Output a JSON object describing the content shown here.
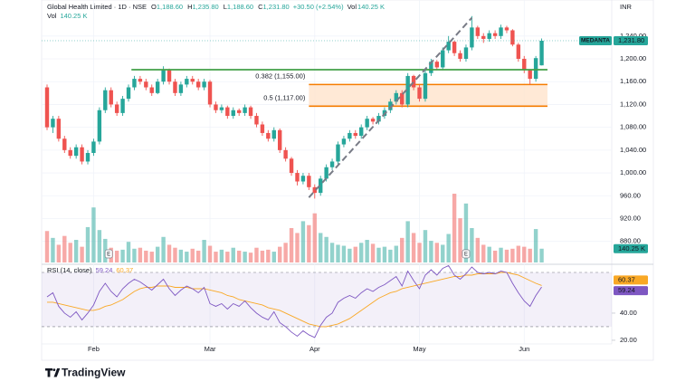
{
  "header": {
    "symbol": "Global Health Limited · 1D · NSE",
    "ohlc": [
      {
        "label": "O",
        "value": "1,188.60"
      },
      {
        "label": "H",
        "value": "1,235.80"
      },
      {
        "label": "L",
        "value": "1,188.60"
      },
      {
        "label": "C",
        "value": "1,231.80"
      }
    ],
    "change": "+30.50 (+2.54%)",
    "volume": {
      "label": "Vol",
      "value": "140.25 K"
    }
  },
  "volume_legend": {
    "label": "Vol",
    "value": "140.25 K"
  },
  "logo": "TradingView",
  "chart_data": [
    {
      "type": "candlestick",
      "currency": "INR",
      "ticker_label": "MEDANTA",
      "last_price_label": "1,231.80",
      "volume_label": "140.25 K",
      "up_color": "#26a69a",
      "down_color": "#ef5350",
      "categories": [
        null,
        null,
        null,
        null,
        null,
        null,
        null,
        null,
        "Feb",
        null,
        null,
        null,
        null,
        null,
        null,
        null,
        null,
        null,
        null,
        null,
        null,
        null,
        null,
        null,
        null,
        null,
        null,
        null,
        "Mar",
        null,
        null,
        null,
        null,
        null,
        null,
        null,
        null,
        null,
        null,
        null,
        null,
        null,
        null,
        null,
        null,
        null,
        "Apr",
        null,
        null,
        null,
        null,
        null,
        null,
        null,
        null,
        null,
        null,
        null,
        null,
        null,
        null,
        null,
        null,
        null,
        "May",
        null,
        null,
        null,
        null,
        null,
        null,
        null,
        null,
        null,
        null,
        null,
        null,
        null,
        null,
        null,
        null,
        null,
        "Jun",
        null,
        null,
        null
      ],
      "open": [
        1150,
        1080,
        1095,
        1060,
        1040,
        1030,
        1045,
        1020,
        1035,
        1055,
        1110,
        1145,
        1120,
        1105,
        1130,
        1150,
        1165,
        1160,
        1150,
        1140,
        1160,
        1180,
        1160,
        1140,
        1155,
        1165,
        1160,
        1150,
        1160,
        1120,
        1110,
        1115,
        1100,
        1110,
        1105,
        1115,
        1100,
        1085,
        1070,
        1060,
        1075,
        1040,
        1025,
        1000,
        985,
        995,
        975,
        965,
        990,
        1010,
        1020,
        1050,
        1060,
        1070,
        1065,
        1080,
        1095,
        1090,
        1100,
        1110,
        1125,
        1140,
        1120,
        1170,
        1150,
        1130,
        1175,
        1195,
        1185,
        1215,
        1230,
        1210,
        1200,
        1220,
        1255,
        1240,
        1235,
        1245,
        1240,
        1255,
        1250,
        1225,
        1200,
        1180,
        1165,
        1188.6
      ],
      "high": [
        1155,
        1100,
        1100,
        1065,
        1045,
        1050,
        1050,
        1040,
        1060,
        1115,
        1150,
        1150,
        1125,
        1135,
        1155,
        1170,
        1170,
        1165,
        1155,
        1165,
        1187,
        1183,
        1165,
        1160,
        1170,
        1170,
        1165,
        1165,
        1163,
        1125,
        1120,
        1118,
        1115,
        1113,
        1120,
        1118,
        1105,
        1090,
        1075,
        1080,
        1078,
        1045,
        1028,
        1005,
        1000,
        1000,
        980,
        995,
        1015,
        1025,
        1055,
        1065,
        1075,
        1075,
        1085,
        1100,
        1098,
        1105,
        1115,
        1130,
        1145,
        1145,
        1175,
        1172,
        1155,
        1180,
        1200,
        1198,
        1220,
        1240,
        1232,
        1215,
        1225,
        1275,
        1258,
        1245,
        1250,
        1250,
        1260,
        1258,
        1252,
        1228,
        1205,
        1182,
        1205,
        1235.8
      ],
      "low": [
        1075,
        1070,
        1055,
        1035,
        1025,
        1025,
        1015,
        1015,
        1030,
        1050,
        1105,
        1115,
        1100,
        1100,
        1125,
        1145,
        1155,
        1145,
        1135,
        1138,
        1155,
        1155,
        1135,
        1135,
        1150,
        1155,
        1145,
        1145,
        1115,
        1105,
        1105,
        1095,
        1095,
        1100,
        1100,
        1095,
        1080,
        1065,
        1055,
        1055,
        1035,
        1020,
        995,
        978,
        980,
        970,
        955,
        960,
        985,
        1005,
        1015,
        1045,
        1055,
        1060,
        1060,
        1075,
        1085,
        1085,
        1095,
        1105,
        1120,
        1115,
        1115,
        1145,
        1125,
        1125,
        1170,
        1180,
        1180,
        1210,
        1205,
        1195,
        1195,
        1215,
        1235,
        1228,
        1230,
        1235,
        1235,
        1245,
        1222,
        1195,
        1175,
        1155,
        1160,
        1188.6
      ],
      "close": [
        1080,
        1095,
        1060,
        1040,
        1030,
        1045,
        1020,
        1035,
        1055,
        1110,
        1145,
        1120,
        1105,
        1130,
        1150,
        1165,
        1160,
        1150,
        1140,
        1160,
        1180,
        1160,
        1140,
        1155,
        1165,
        1160,
        1150,
        1160,
        1120,
        1110,
        1115,
        1100,
        1110,
        1105,
        1115,
        1100,
        1085,
        1070,
        1060,
        1075,
        1040,
        1025,
        1000,
        985,
        995,
        975,
        965,
        990,
        1010,
        1020,
        1050,
        1060,
        1070,
        1065,
        1080,
        1095,
        1090,
        1100,
        1110,
        1125,
        1140,
        1120,
        1170,
        1150,
        1130,
        1175,
        1195,
        1185,
        1215,
        1230,
        1210,
        1200,
        1220,
        1255,
        1240,
        1235,
        1245,
        1240,
        1255,
        1250,
        1225,
        1200,
        1180,
        1165,
        1201.3,
        1231.8
      ],
      "volume": [
        320,
        250,
        180,
        270,
        200,
        230,
        160,
        360,
        560,
        330,
        240,
        150,
        120,
        130,
        210,
        140,
        150,
        120,
        110,
        160,
        260,
        180,
        150,
        130,
        110,
        140,
        120,
        230,
        170,
        110,
        130,
        110,
        150,
        120,
        110,
        100,
        150,
        120,
        130,
        110,
        160,
        200,
        350,
        300,
        420,
        380,
        500,
        300,
        260,
        200,
        180,
        170,
        140,
        160,
        200,
        230,
        190,
        150,
        160,
        130,
        170,
        250,
        420,
        300,
        200,
        330,
        220,
        200,
        180,
        290,
        700,
        450,
        600,
        350,
        250,
        180,
        160,
        120,
        150,
        130,
        140,
        170,
        160,
        140,
        340,
        140.25
      ],
      "ylim": [
        843,
        1300
      ],
      "yticks": [
        {
          "value": 1240,
          "label": "1,240.00"
        },
        {
          "value": 1200,
          "label": "1,200.00"
        },
        {
          "value": 1160,
          "label": "1,160.00"
        },
        {
          "value": 1120,
          "label": "1,120.00"
        },
        {
          "value": 1080,
          "label": "1,080.00"
        },
        {
          "value": 1040,
          "label": "1,040.00"
        },
        {
          "value": 1000,
          "label": "1,000.00"
        },
        {
          "value": 960,
          "label": "960.00"
        },
        {
          "value": 920,
          "label": "920.00"
        },
        {
          "value": 880,
          "label": "880.00"
        }
      ],
      "grid": true,
      "support": {
        "value": 1181,
        "from": 14.5,
        "to": 86,
        "color": "#43a047"
      },
      "fib": {
        "from": 45,
        "to": 86,
        "color": "#f57c00",
        "fill": "#ffe4cc",
        "levels": [
          {
            "label": "0.382 (1,155.00)",
            "value": 1155
          },
          {
            "label": "0.5 (1,117.00)",
            "value": 1117
          }
        ]
      },
      "trendline": {
        "x": [
          45,
          73
        ],
        "values": [
          957,
          1272
        ],
        "color": "#787b86"
      },
      "earnings": [
        {
          "label": "E",
          "x": 10.6
        },
        {
          "label": "E",
          "x": 72
        }
      ]
    },
    {
      "type": "line",
      "title": "RSI (14, close)",
      "series": [
        {
          "color": "#7e57c2",
          "values": [
            52,
            55,
            45,
            40,
            37,
            41,
            35,
            40,
            46,
            56,
            62,
            56,
            52,
            58,
            62,
            65,
            63,
            60,
            57,
            61,
            65,
            58,
            53,
            57,
            60,
            58,
            55,
            59,
            47,
            45,
            47,
            43,
            47,
            45,
            49,
            44,
            40,
            37,
            35,
            41,
            33,
            30,
            26,
            23,
            27,
            24,
            22,
            31,
            37,
            40,
            48,
            51,
            53,
            51,
            55,
            58,
            56,
            59,
            61,
            64,
            67,
            60,
            71,
            64,
            58,
            68,
            72,
            68,
            73,
            75,
            68,
            65,
            69,
            74,
            70,
            69,
            70,
            69,
            71,
            70,
            62,
            55,
            49,
            45,
            53,
            59.24
          ]
        },
        {
          "color": "#f9a825",
          "values": [
            48,
            48,
            47,
            46,
            45,
            44,
            43,
            42,
            42,
            43,
            45,
            46,
            48,
            50,
            53,
            56,
            58,
            59,
            59,
            60,
            60,
            60,
            59,
            59,
            59,
            58,
            58,
            58,
            57,
            56,
            55,
            53,
            52,
            50,
            49,
            48,
            47,
            46,
            44,
            43,
            42,
            40,
            38,
            36,
            34,
            32,
            31,
            30,
            30,
            31,
            32,
            34,
            36,
            39,
            42,
            45,
            48,
            51,
            53,
            55,
            56,
            58,
            59,
            60,
            61,
            62,
            63,
            64,
            65,
            66,
            67,
            67,
            68,
            68,
            69,
            69,
            69,
            69,
            70,
            70,
            69,
            68,
            66,
            64,
            62,
            60.37
          ]
        }
      ],
      "ylim": [
        17.3,
        74
      ],
      "yticks": [
        {
          "value": 40,
          "label": "40.00"
        },
        {
          "value": 20,
          "label": "20.00"
        }
      ],
      "bands": [
        30,
        70
      ],
      "band_color": "#7e57c2"
    }
  ]
}
